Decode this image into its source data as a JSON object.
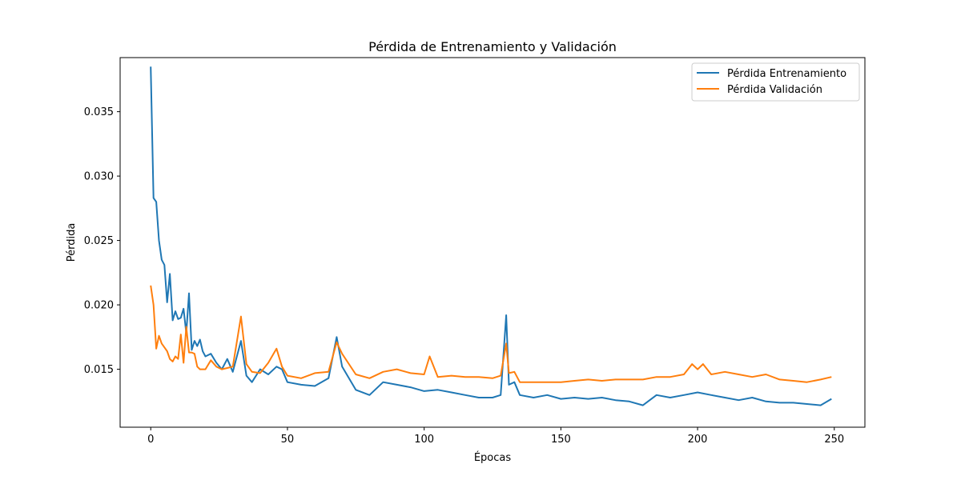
{
  "chart_data": {
    "type": "line",
    "title": "Pérdida de Entrenamiento y Validación",
    "xlabel": "Épocas",
    "ylabel": "Pérdida",
    "xlim": [
      -11.2,
      261.2
    ],
    "ylim": [
      0.0105,
      0.0392
    ],
    "xticks": [
      0,
      50,
      100,
      150,
      200,
      250
    ],
    "yticks": [
      0.015,
      0.02,
      0.025,
      0.03,
      0.035
    ],
    "ytick_labels": [
      "0.015",
      "0.020",
      "0.025",
      "0.030",
      "0.035"
    ],
    "grid": false,
    "legend_position": "top-right",
    "series": [
      {
        "name": "Pérdida Entrenamiento",
        "color": "#1f77b4",
        "x": [
          0,
          1,
          2,
          3,
          4,
          5,
          6,
          7,
          8,
          9,
          10,
          11,
          12,
          13,
          14,
          15,
          16,
          17,
          18,
          19,
          20,
          22,
          24,
          26,
          28,
          30,
          33,
          35,
          37,
          40,
          43,
          46,
          48,
          50,
          55,
          60,
          65,
          68,
          70,
          75,
          80,
          85,
          90,
          95,
          100,
          105,
          110,
          115,
          120,
          125,
          128,
          130,
          131,
          133,
          135,
          140,
          145,
          150,
          155,
          160,
          165,
          170,
          175,
          180,
          185,
          190,
          195,
          200,
          205,
          210,
          215,
          220,
          225,
          230,
          235,
          240,
          245,
          249
        ],
        "y": [
          0.0385,
          0.0283,
          0.028,
          0.025,
          0.0235,
          0.0231,
          0.0202,
          0.0224,
          0.0188,
          0.0195,
          0.0189,
          0.019,
          0.0197,
          0.0178,
          0.0209,
          0.0165,
          0.0172,
          0.0168,
          0.0173,
          0.0164,
          0.016,
          0.0162,
          0.0155,
          0.015,
          0.0158,
          0.0148,
          0.0172,
          0.0145,
          0.014,
          0.015,
          0.0146,
          0.0152,
          0.015,
          0.014,
          0.0138,
          0.0137,
          0.0143,
          0.0175,
          0.0152,
          0.0134,
          0.013,
          0.014,
          0.0138,
          0.0136,
          0.0133,
          0.0134,
          0.0132,
          0.013,
          0.0128,
          0.0128,
          0.013,
          0.0192,
          0.0138,
          0.014,
          0.013,
          0.0128,
          0.013,
          0.0127,
          0.0128,
          0.0127,
          0.0128,
          0.0126,
          0.0125,
          0.0122,
          0.013,
          0.0128,
          0.013,
          0.0132,
          0.013,
          0.0128,
          0.0126,
          0.0128,
          0.0125,
          0.0124,
          0.0124,
          0.0123,
          0.0122,
          0.0127
        ]
      },
      {
        "name": "Pérdida Validación",
        "color": "#ff7f0e",
        "x": [
          0,
          1,
          2,
          3,
          4,
          5,
          6,
          7,
          8,
          9,
          10,
          11,
          12,
          13,
          14,
          15,
          16,
          17,
          18,
          20,
          22,
          24,
          26,
          28,
          30,
          33,
          35,
          37,
          40,
          43,
          46,
          48,
          50,
          55,
          60,
          65,
          68,
          70,
          75,
          80,
          85,
          90,
          95,
          100,
          102,
          105,
          110,
          115,
          120,
          125,
          128,
          130,
          131,
          133,
          135,
          140,
          145,
          150,
          155,
          160,
          165,
          170,
          175,
          180,
          185,
          190,
          195,
          198,
          200,
          202,
          205,
          210,
          215,
          220,
          225,
          230,
          235,
          240,
          245,
          249
        ],
        "y": [
          0.0215,
          0.02,
          0.0166,
          0.0176,
          0.017,
          0.0167,
          0.0164,
          0.0158,
          0.0156,
          0.016,
          0.0158,
          0.0177,
          0.0155,
          0.0183,
          0.0163,
          0.0163,
          0.0162,
          0.0152,
          0.015,
          0.015,
          0.0157,
          0.0152,
          0.015,
          0.0151,
          0.0152,
          0.0191,
          0.0154,
          0.0148,
          0.0147,
          0.0155,
          0.0166,
          0.0152,
          0.0145,
          0.0143,
          0.0147,
          0.0148,
          0.0171,
          0.0162,
          0.0146,
          0.0143,
          0.0148,
          0.015,
          0.0147,
          0.0146,
          0.016,
          0.0144,
          0.0145,
          0.0144,
          0.0144,
          0.0143,
          0.0145,
          0.017,
          0.0147,
          0.0148,
          0.014,
          0.014,
          0.014,
          0.014,
          0.0141,
          0.0142,
          0.0141,
          0.0142,
          0.0142,
          0.0142,
          0.0144,
          0.0144,
          0.0146,
          0.0154,
          0.015,
          0.0154,
          0.0146,
          0.0148,
          0.0146,
          0.0144,
          0.0146,
          0.0142,
          0.0141,
          0.014,
          0.0142,
          0.0144
        ]
      }
    ]
  }
}
